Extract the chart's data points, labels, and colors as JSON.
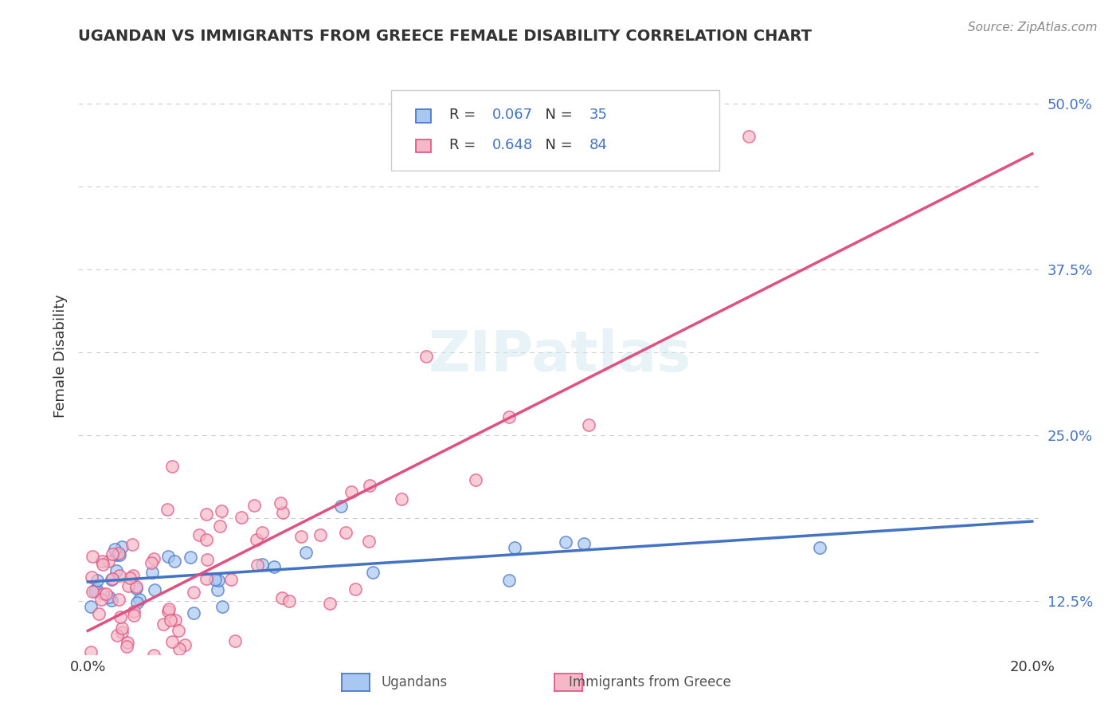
{
  "title": "UGANDAN VS IMMIGRANTS FROM GREECE FEMALE DISABILITY CORRELATION CHART",
  "source": "Source: ZipAtlas.com",
  "ylabel": "Female Disability",
  "r_ugandan": 0.067,
  "n_ugandan": 35,
  "r_greece": 0.648,
  "n_greece": 84,
  "ugandan_color": "#a8c8f0",
  "ugandan_line_color": "#4472c4",
  "greece_color": "#f4b8c8",
  "greece_line_color": "#e05080",
  "blue_text_color": "#4472c4",
  "yticks": [
    0.125,
    0.1875,
    0.25,
    0.3125,
    0.375,
    0.4375,
    0.5
  ],
  "ytick_labels": [
    "12.5%",
    "",
    "25.0%",
    "",
    "37.5%",
    "",
    "50.0%"
  ],
  "watermark": "ZIPatlas",
  "background_color": "#ffffff",
  "legend_label_ugandan": "Ugandans",
  "legend_label_greece": "Immigrants from Greece",
  "seed": 42
}
